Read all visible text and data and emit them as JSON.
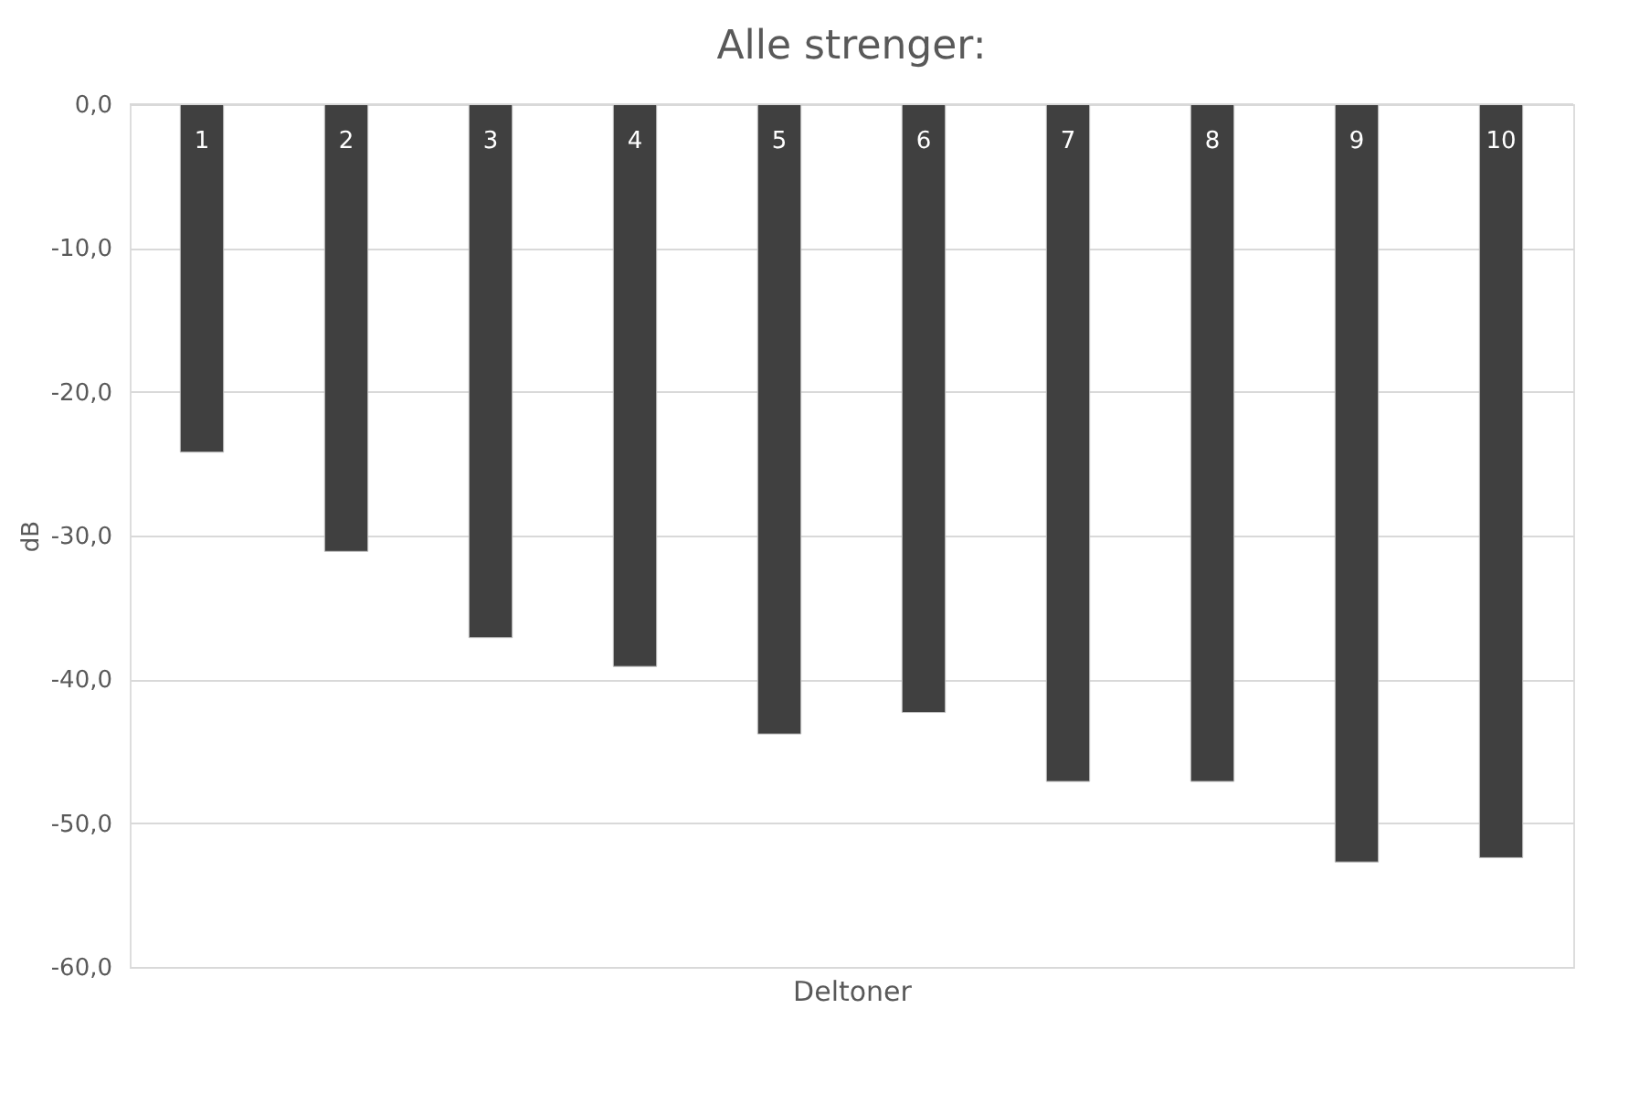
{
  "chart_data": {
    "type": "bar",
    "title": "Alle strenger:",
    "xlabel": "Deltoner",
    "ylabel": "dB",
    "categories": [
      "1",
      "2",
      "3",
      "4",
      "5",
      "6",
      "7",
      "8",
      "9",
      "10"
    ],
    "values": [
      -24.2,
      -31.1,
      -37.1,
      -39.1,
      -43.8,
      -42.3,
      -47.1,
      -47.1,
      -52.7,
      -52.4
    ],
    "color": "#404040",
    "ylim": [
      -60,
      0
    ],
    "yticks": [
      {
        "value": -60,
        "label": "-60,0"
      },
      {
        "value": -50,
        "label": "-50,0"
      },
      {
        "value": -40,
        "label": "-40,0"
      },
      {
        "value": -30,
        "label": "-30,0"
      },
      {
        "value": -20,
        "label": "-20,0"
      },
      {
        "value": -10,
        "label": "-10,0"
      },
      {
        "value": 0,
        "label": "0,0"
      }
    ],
    "grid": "y",
    "tick_labels": "y"
  }
}
